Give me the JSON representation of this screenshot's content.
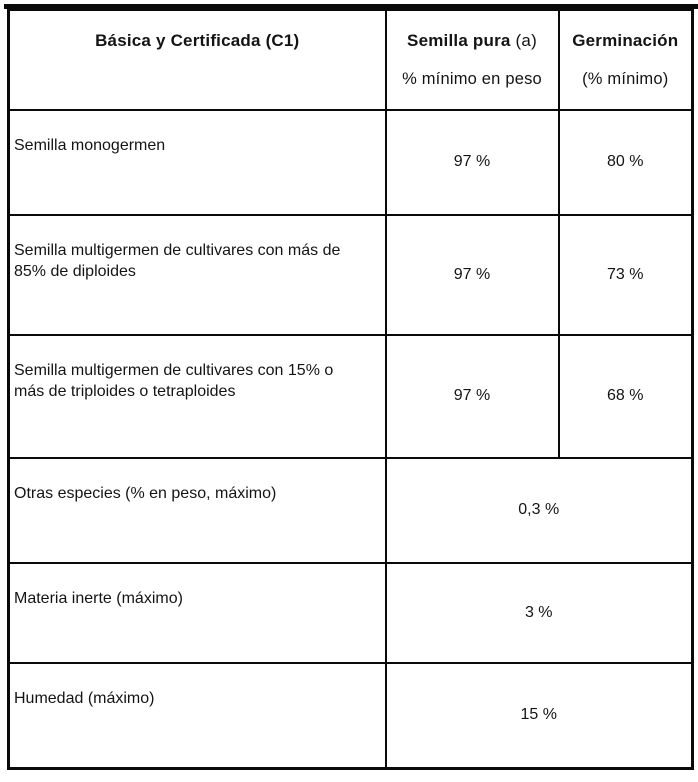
{
  "table": {
    "header": {
      "category": "Básica y Certificada (C1)",
      "semilla_pura_bold": "Semilla pura",
      "semilla_pura_note": "(a)",
      "semilla_pura_sub": "% mínimo en peso",
      "germinacion": "Germinación",
      "germinacion_sub": "(% mínimo)"
    },
    "rows": [
      {
        "label": "Semilla monogermen",
        "semilla_pura": "97 %",
        "germinacion": "80 %"
      },
      {
        "label": "Semilla multigermen de cultivares con más de 85% de diploides",
        "semilla_pura": "97 %",
        "germinacion": "73 %"
      },
      {
        "label": "Semilla multigermen de cultivares con 15% o más de triploides o tetraploides",
        "semilla_pura": "97 %",
        "germinacion": "68 %"
      }
    ],
    "merged_rows": [
      {
        "label": "Otras especies (% en peso, máximo)",
        "value": "0,3 %"
      },
      {
        "label": "Materia inerte (máximo)",
        "value": "3 %"
      },
      {
        "label": "Humedad (máximo)",
        "value": "15 %"
      }
    ]
  }
}
